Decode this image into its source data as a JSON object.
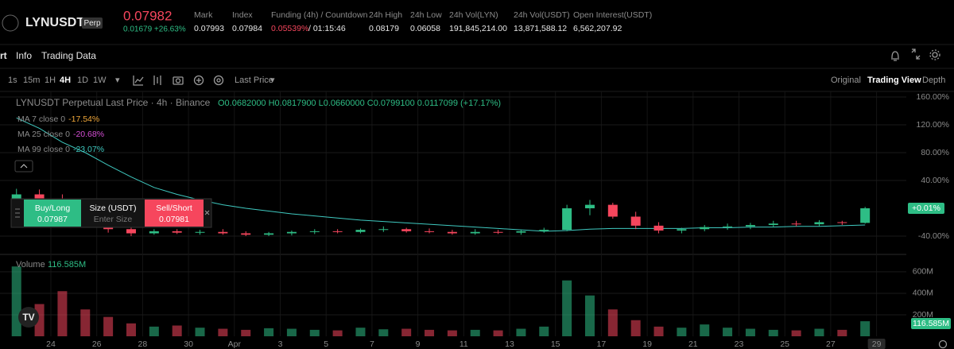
{
  "header": {
    "symbol": "LYNUSDT",
    "badge": "Perp",
    "price": "0.07982",
    "change": "0.01679 +26.63%",
    "stats": [
      {
        "label": "Mark",
        "value": "0.07993"
      },
      {
        "label": "Index",
        "value": "0.07984"
      },
      {
        "label": "Funding (4h) / Countdown",
        "value": "0.05539%",
        "countdown": "/ 01:15:46"
      },
      {
        "label": "24h High",
        "value": "0.08179"
      },
      {
        "label": "24h Low",
        "value": "0.06058"
      },
      {
        "label": "24h Vol(LYN)",
        "value": "191,845,214.00"
      },
      {
        "label": "24h Vol(USDT)",
        "value": "13,871,588.12"
      },
      {
        "label": "Open Interest(USDT)",
        "value": "6,562,207.92"
      }
    ]
  },
  "tabs": [
    "rt",
    "Info",
    "Trading Data"
  ],
  "intervals": [
    "1s",
    "15m",
    "1H",
    "4H",
    "1D",
    "1W"
  ],
  "price_type": "Last Price",
  "views": [
    "Original",
    "Trading View",
    "Depth"
  ],
  "trade": {
    "buy": "Buy/Long",
    "buy_price": "0.07987",
    "size": "Size (USDT)",
    "size_placeholder": "Enter Size",
    "sell": "Sell/Short",
    "sell_price": "0.07981"
  },
  "chart_data": {
    "type": "candlestick",
    "title": "LYNUSDT Perpetual Last Price · 4h · Binance",
    "ohlc": "O0.0682000 H0.0817900 L0.0660000 C0.0799100 0.0117099 (+17.17%)",
    "up_color": "#2ebd85",
    "down_color": "#f6465d",
    "open": [
      10,
      20,
      12,
      0,
      -15,
      -30,
      -36,
      -33,
      -35,
      -34,
      -36,
      -38,
      -36,
      -34,
      -33,
      -34,
      -31,
      -30,
      -33,
      -34,
      -36,
      -34,
      -35,
      -33,
      -31,
      0,
      5,
      -12,
      -25,
      -32,
      -30,
      -27,
      -26,
      -24,
      -22,
      -23,
      -20,
      -21
    ],
    "high": [
      28,
      27,
      20,
      5,
      -10,
      -28,
      -30,
      -30,
      -31,
      -30,
      -33,
      -34,
      -32,
      -30,
      -30,
      -29,
      -26,
      -28,
      -29,
      -31,
      -30,
      -31,
      -31,
      -28,
      5,
      12,
      8,
      -5,
      -20,
      -28,
      -24,
      -22,
      -21,
      -18,
      -18,
      -17,
      -18,
      2
    ],
    "low": [
      5,
      8,
      -5,
      -20,
      -35,
      -40,
      -38,
      -37,
      -38,
      -38,
      -40,
      -40,
      -39,
      -37,
      -36,
      -36,
      -34,
      -35,
      -36,
      -38,
      -38,
      -37,
      -38,
      -35,
      -33,
      -10,
      -15,
      -30,
      -36,
      -36,
      -33,
      -31,
      -30,
      -27,
      -26,
      -26,
      -24,
      -22
    ],
    "close": [
      20,
      12,
      0,
      -15,
      -30,
      -36,
      -33,
      -35,
      -34,
      -36,
      -38,
      -36,
      -34,
      -33,
      -34,
      -31,
      -30,
      -33,
      -34,
      -36,
      -34,
      -35,
      -33,
      -31,
      0,
      5,
      -12,
      -25,
      -32,
      -30,
      -27,
      -26,
      -24,
      -22,
      -23,
      -20,
      -21,
      0
    ],
    "indicators": [
      {
        "name": "MA 7 close 0",
        "value": "-17.54%",
        "color": "#f0a73a"
      },
      {
        "name": "MA 25 close 0",
        "value": "-20.68%",
        "color": "#d64fd6"
      },
      {
        "name": "MA 99 close 0",
        "value": "-23.07%",
        "color": "#3fc9c0",
        "values": [
          130,
          115,
          95,
          80,
          62,
          45,
          30,
          20,
          12,
          5,
          0,
          -4,
          -8,
          -11,
          -14,
          -17,
          -19,
          -21,
          -23,
          -25,
          -27,
          -29,
          -31,
          -33,
          -32,
          -30,
          -29,
          -29,
          -29,
          -29,
          -28,
          -28,
          -27,
          -27,
          -26,
          -26,
          -25,
          -24
        ]
      }
    ],
    "x_labels": [
      "24",
      "26",
      "28",
      "30",
      "Apr",
      "3",
      "5",
      "7",
      "9",
      "11",
      "13",
      "15",
      "17",
      "19",
      "21",
      "23",
      "25",
      "27",
      "29"
    ],
    "ylim": [
      -64,
      168
    ],
    "yticks": [
      {
        "value": -40,
        "label": "-40.00%"
      },
      {
        "value": 40,
        "label": "40.00%"
      },
      {
        "value": 80,
        "label": "80.00%"
      },
      {
        "value": 120,
        "label": "120.00%"
      },
      {
        "value": 160,
        "label": "160.00%"
      }
    ],
    "last_label": "+0.01%",
    "volume": {
      "label": "Volume",
      "value_label": "116.585M",
      "values": [
        650,
        300,
        420,
        250,
        180,
        120,
        90,
        100,
        80,
        70,
        60,
        75,
        70,
        60,
        55,
        80,
        65,
        70,
        60,
        55,
        60,
        55,
        70,
        90,
        520,
        380,
        250,
        150,
        90,
        80,
        110,
        80,
        70,
        60,
        55,
        70,
        60,
        140
      ],
      "ylim": [
        0,
        740
      ],
      "yticks": [
        {
          "value": 200,
          "label": "200M"
        },
        {
          "value": 400,
          "label": "400M"
        },
        {
          "value": 600,
          "label": "600M"
        }
      ]
    }
  }
}
